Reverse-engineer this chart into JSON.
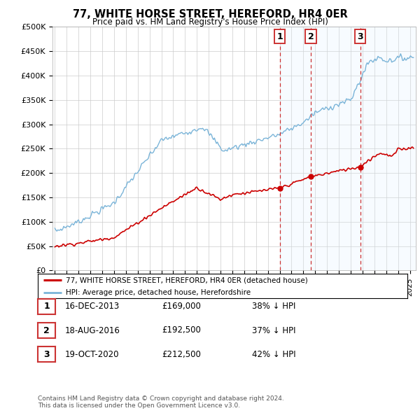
{
  "title": "77, WHITE HORSE STREET, HEREFORD, HR4 0ER",
  "subtitle": "Price paid vs. HM Land Registry's House Price Index (HPI)",
  "ylabel_ticks": [
    "£0",
    "£50K",
    "£100K",
    "£150K",
    "£200K",
    "£250K",
    "£300K",
    "£350K",
    "£400K",
    "£450K",
    "£500K"
  ],
  "ytick_vals": [
    0,
    50000,
    100000,
    150000,
    200000,
    250000,
    300000,
    350000,
    400000,
    450000,
    500000
  ],
  "xlim": [
    1994.8,
    2025.5
  ],
  "ylim": [
    0,
    500000
  ],
  "hpi_color": "#7ab4d8",
  "price_color": "#cc0000",
  "vline_color": "#cc3333",
  "shade_color": "#ddeeff",
  "transaction_dates": [
    2014.0,
    2016.62,
    2020.8
  ],
  "transaction_labels": [
    "1",
    "2",
    "3"
  ],
  "transaction_prices": [
    169000,
    192500,
    212500
  ],
  "legend_label_price": "77, WHITE HORSE STREET, HEREFORD, HR4 0ER (detached house)",
  "legend_label_hpi": "HPI: Average price, detached house, Herefordshire",
  "table_rows": [
    [
      "1",
      "16-DEC-2013",
      "£169,000",
      "38% ↓ HPI"
    ],
    [
      "2",
      "18-AUG-2016",
      "£192,500",
      "37% ↓ HPI"
    ],
    [
      "3",
      "19-OCT-2020",
      "£212,500",
      "42% ↓ HPI"
    ]
  ],
  "footnote": "Contains HM Land Registry data © Crown copyright and database right 2024.\nThis data is licensed under the Open Government Licence v3.0.",
  "background_color": "#ffffff",
  "plot_bg_color": "#ffffff",
  "grid_color": "#cccccc"
}
